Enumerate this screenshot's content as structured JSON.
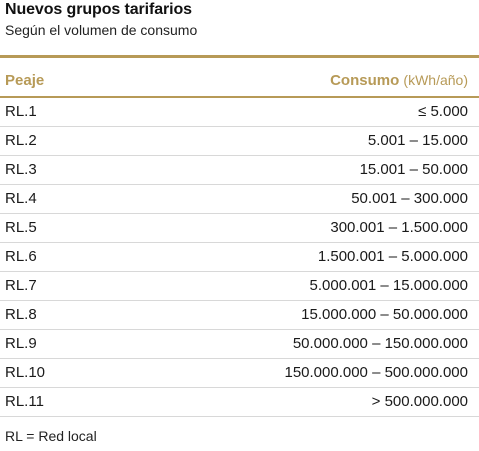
{
  "title": "Nuevos grupos tarifarios",
  "subtitle": "Según el volumen de consumo",
  "table": {
    "header": {
      "col1": "Peaje",
      "col2": "Consumo",
      "col2_unit": "(kWh/año)"
    },
    "rows": [
      {
        "peaje": "RL.1",
        "consumo": "≤ 5.000"
      },
      {
        "peaje": "RL.2",
        "consumo": "5.001 – 15.000"
      },
      {
        "peaje": "RL.3",
        "consumo": "15.001 – 50.000"
      },
      {
        "peaje": "RL.4",
        "consumo": "50.001 – 300.000"
      },
      {
        "peaje": "RL.5",
        "consumo": "300.001 – 1.500.000"
      },
      {
        "peaje": "RL.6",
        "consumo": "1.500.001 – 5.000.000"
      },
      {
        "peaje": "RL.7",
        "consumo": "5.000.001 – 15.000.000"
      },
      {
        "peaje": "RL.8",
        "consumo": "15.000.000 – 50.000.000"
      },
      {
        "peaje": "RL.9",
        "consumo": "50.000.000 – 150.000.000"
      },
      {
        "peaje": "RL.10",
        "consumo": "150.000.000 – 500.000.000"
      },
      {
        "peaje": "RL.11",
        "consumo": "> 500.000.000"
      }
    ]
  },
  "footnote": "RL = Red local",
  "colors": {
    "accent": "#b79a57",
    "text": "#1a1a1a",
    "divider": "#d8d8d8"
  }
}
